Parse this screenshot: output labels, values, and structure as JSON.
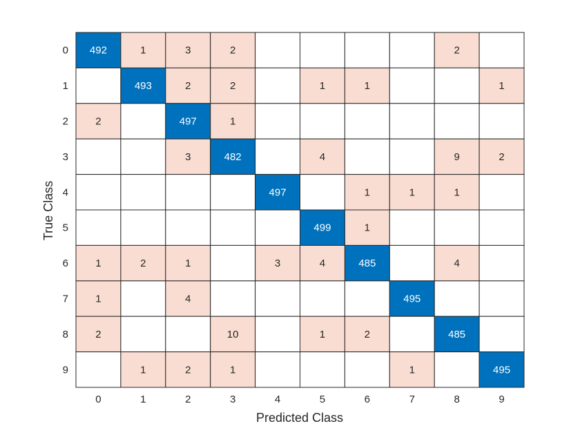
{
  "chart_data": {
    "type": "heatmap",
    "title": "",
    "xlabel": "Predicted Class",
    "ylabel": "True Class",
    "x_categories": [
      "0",
      "1",
      "2",
      "3",
      "4",
      "5",
      "6",
      "7",
      "8",
      "9"
    ],
    "y_categories": [
      "0",
      "1",
      "2",
      "3",
      "4",
      "5",
      "6",
      "7",
      "8",
      "9"
    ],
    "values": [
      [
        492,
        1,
        3,
        2,
        null,
        null,
        null,
        null,
        2,
        null
      ],
      [
        null,
        493,
        2,
        2,
        null,
        1,
        1,
        null,
        null,
        1
      ],
      [
        2,
        null,
        497,
        1,
        null,
        null,
        null,
        null,
        null,
        null
      ],
      [
        null,
        null,
        3,
        482,
        null,
        4,
        null,
        null,
        9,
        2
      ],
      [
        null,
        null,
        null,
        null,
        497,
        null,
        1,
        1,
        1,
        null
      ],
      [
        null,
        null,
        null,
        null,
        null,
        499,
        1,
        null,
        null,
        null
      ],
      [
        1,
        2,
        1,
        null,
        3,
        4,
        485,
        null,
        4,
        null
      ],
      [
        1,
        null,
        4,
        null,
        null,
        null,
        null,
        495,
        null,
        null
      ],
      [
        2,
        null,
        null,
        10,
        null,
        1,
        2,
        null,
        485,
        null
      ],
      [
        null,
        1,
        2,
        1,
        null,
        null,
        null,
        1,
        null,
        495
      ]
    ],
    "colors": {
      "diagonal": "#0072BD",
      "diagonal_text": "#ffffff",
      "off_diagonal": "#F9DDD3",
      "off_diagonal_text": "#262626",
      "empty": "#ffffff",
      "grid": "#262626"
    },
    "grid": true,
    "legend": "none"
  }
}
